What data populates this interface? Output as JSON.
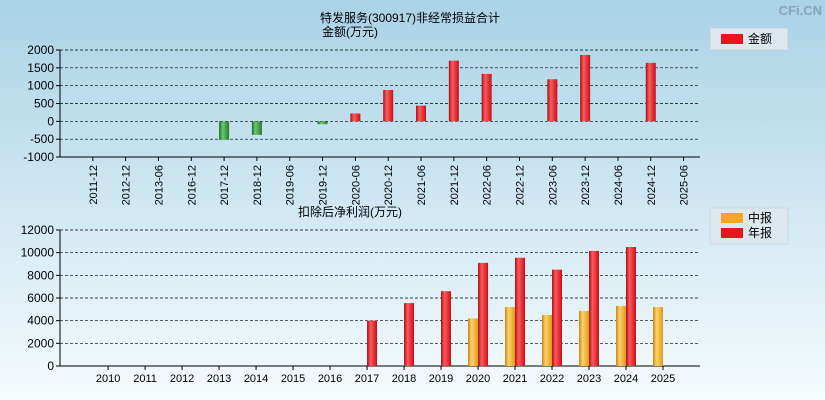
{
  "watermark": "CFi.CN",
  "colors": {
    "background_top": "#a9d3e6",
    "background_bottom": "#f6fbfd",
    "nonrecurring_positive": "#e8161c",
    "nonrecurring_negative": "#2c8c34",
    "quarterly": "#f5a623",
    "annual": "#e8161c",
    "grid": "#000000"
  },
  "chart_data": [
    {
      "type": "bar",
      "title": "特发服务(300917)非经常损益合计",
      "subtitle": "金额(万元)",
      "categories": [
        "2011-12",
        "2012-12",
        "2013-06",
        "2016-12",
        "2017-12",
        "2018-12",
        "2019-06",
        "2019-12",
        "2020-06",
        "2020-12",
        "2021-06",
        "2021-12",
        "2022-06",
        "2022-12",
        "2023-06",
        "2023-12",
        "2024-06",
        "2024-12",
        "2025-06"
      ],
      "series": [
        {
          "name": "金额",
          "values": [
            null,
            null,
            null,
            null,
            -520,
            -380,
            null,
            -80,
            220,
            880,
            440,
            1700,
            1330,
            null,
            1180,
            1860,
            null,
            1640,
            null
          ]
        }
      ],
      "ylim": [
        -1000,
        2000
      ],
      "yticks": [
        -1000,
        -500,
        0,
        500,
        1000,
        1500,
        2000
      ],
      "grid": true,
      "legend_position": "top-right"
    },
    {
      "type": "bar",
      "title": "扣除后净利润(万元)",
      "categories": [
        "2010",
        "2011",
        "2012",
        "2013",
        "2014",
        "2015",
        "2016",
        "2017",
        "2018",
        "2019",
        "2020",
        "2021",
        "2022",
        "2023",
        "2024",
        "2025"
      ],
      "series": [
        {
          "name": "中报",
          "values": [
            null,
            null,
            null,
            null,
            null,
            null,
            null,
            null,
            null,
            null,
            4200,
            5200,
            4500,
            4850,
            5300,
            5200
          ]
        },
        {
          "name": "年报",
          "values": [
            null,
            null,
            null,
            null,
            null,
            null,
            null,
            4000,
            5550,
            6600,
            9100,
            9550,
            8500,
            10150,
            10500,
            null
          ]
        }
      ],
      "ylim": [
        0,
        12000
      ],
      "yticks": [
        0,
        2000,
        4000,
        6000,
        8000,
        10000,
        12000
      ],
      "grid": true,
      "legend_position": "top-right"
    }
  ]
}
